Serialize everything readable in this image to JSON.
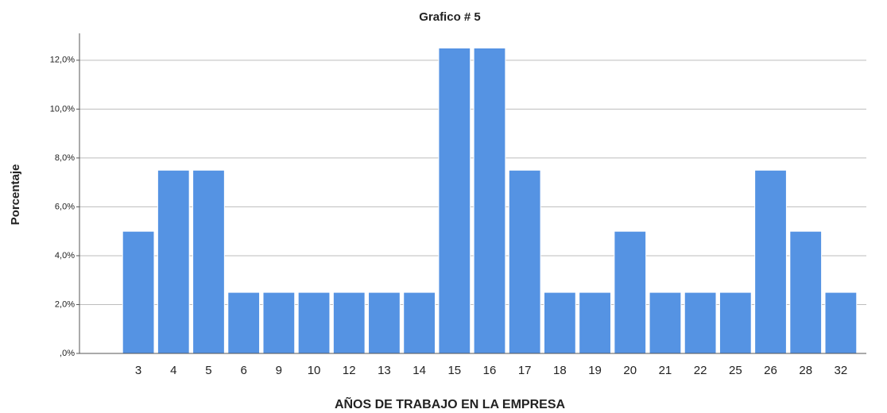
{
  "chart_data": {
    "type": "bar",
    "title": "Grafico # 5",
    "x_label": "AÑOS DE TRABAJO EN LA EMPRESA",
    "y_label": "Porcentaje",
    "categories": [
      "3",
      "4",
      "5",
      "6",
      "9",
      "10",
      "12",
      "13",
      "14",
      "15",
      "16",
      "17",
      "18",
      "19",
      "20",
      "21",
      "22",
      "25",
      "26",
      "28",
      "32"
    ],
    "values": [
      5,
      7.5,
      7.5,
      2.5,
      2.5,
      2.5,
      2.5,
      2.5,
      2.5,
      12.5,
      12.5,
      7.5,
      2.5,
      2.5,
      5,
      2.5,
      2.5,
      2.5,
      7.5,
      5,
      2.5
    ],
    "color": "#5593e3",
    "ylim": [
      0,
      13.1
    ],
    "yticks": [
      {
        "value": 0,
        "label": ",0%"
      },
      {
        "value": 2,
        "label": "2,0%"
      },
      {
        "value": 4,
        "label": "4,0%"
      },
      {
        "value": 6,
        "label": "6,0%"
      },
      {
        "value": 8,
        "label": "8,0%"
      },
      {
        "value": 10,
        "label": "10,0%"
      },
      {
        "value": 12,
        "label": "12,0%"
      }
    ],
    "grid": true
  }
}
